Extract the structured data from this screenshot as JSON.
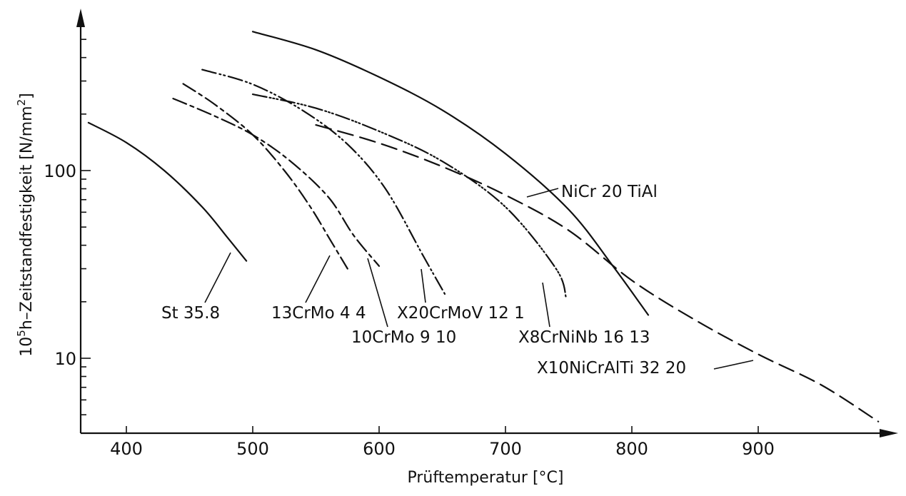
{
  "chart_data": {
    "type": "line",
    "title": "",
    "xlabel": "Prüftemperatur [°C]",
    "ylabel_main": "10",
    "ylabel_sup1": "5",
    "ylabel_mid": "h–Zeitstandfestigkeit [N/mm",
    "ylabel_sup2": "2",
    "ylabel_end": "]",
    "x_scale": "linear",
    "y_scale": "log",
    "xlim": [
      364,
      1000
    ],
    "ylim": [
      4.5,
      600
    ],
    "x_ticks": [
      400,
      500,
      600,
      700,
      800,
      900
    ],
    "x_tick_labels": [
      "400",
      "500",
      "600",
      "700",
      "800",
      "900"
    ],
    "y_major_ticks": [
      10,
      100
    ],
    "y_major_tick_labels": [
      "10",
      "100"
    ],
    "y_minor_ticks": [
      5,
      6,
      7,
      8,
      9,
      20,
      30,
      40,
      50,
      60,
      70,
      80,
      90,
      200,
      300,
      400,
      500
    ],
    "grid": false,
    "legend": "none (curves labelled directly)",
    "series": [
      {
        "name": "St 35.8",
        "style": "solid",
        "points": [
          [
            370,
            180
          ],
          [
            400,
            141
          ],
          [
            430,
            100
          ],
          [
            460,
            64
          ],
          [
            480,
            44
          ],
          [
            495,
            33
          ]
        ]
      },
      {
        "name": "13CrMo 4 4",
        "style": "long-dash-short-dash",
        "points": [
          [
            445,
            290
          ],
          [
            470,
            225
          ],
          [
            500,
            155
          ],
          [
            525,
            100
          ],
          [
            545,
            65
          ],
          [
            562,
            42
          ],
          [
            575,
            30
          ]
        ]
      },
      {
        "name": "10CrMo 9 10",
        "style": "long-dash-short-dash",
        "points": [
          [
            437,
            242
          ],
          [
            470,
            195
          ],
          [
            500,
            155
          ],
          [
            530,
            112
          ],
          [
            560,
            72
          ],
          [
            580,
            45
          ],
          [
            600,
            31
          ]
        ]
      },
      {
        "name": "X20CrMoV 12 1",
        "style": "long-dash-double-dot",
        "points": [
          [
            460,
            345
          ],
          [
            500,
            288
          ],
          [
            540,
            208
          ],
          [
            575,
            138
          ],
          [
            605,
            80
          ],
          [
            635,
            35
          ],
          [
            652,
            22
          ]
        ]
      },
      {
        "name": "X8CrNiNb 16 13",
        "style": "long-dash-triple-dot",
        "points": [
          [
            500,
            255
          ],
          [
            550,
            215
          ],
          [
            600,
            162
          ],
          [
            650,
            112
          ],
          [
            700,
            64
          ],
          [
            740,
            30
          ],
          [
            748,
            21
          ]
        ]
      },
      {
        "name": "NiCr 20 TiAl",
        "style": "solid",
        "points": [
          [
            500,
            550
          ],
          [
            550,
            440
          ],
          [
            600,
            315
          ],
          [
            650,
            210
          ],
          [
            700,
            123
          ],
          [
            750,
            62
          ],
          [
            785,
            31
          ],
          [
            813,
            17
          ]
        ]
      },
      {
        "name": "X10NiCrAlTi 32 20",
        "style": "dashed",
        "points": [
          [
            550,
            175
          ],
          [
            600,
            140
          ],
          [
            650,
            105
          ],
          [
            700,
            74
          ],
          [
            750,
            48
          ],
          [
            800,
            26
          ],
          [
            850,
            16
          ],
          [
            900,
            10.5
          ],
          [
            950,
            7.2
          ],
          [
            995,
            4.6
          ]
        ]
      }
    ],
    "annotations": [
      {
        "text": "St 35.8",
        "series": "St 35.8"
      },
      {
        "text": "13CrMo 4 4",
        "series": "13CrMo 4 4"
      },
      {
        "text": "10CrMo 9 10",
        "series": "10CrMo 9 10"
      },
      {
        "text": "X20CrMoV 12 1",
        "series": "X20CrMoV 12 1"
      },
      {
        "text": "X8CrNiNb 16 13",
        "series": "X8CrNiNb 16 13"
      },
      {
        "text": "NiCr 20 TiAl",
        "series": "NiCr 20 TiAl"
      },
      {
        "text": "X10NiCrAlTi 32 20",
        "series": "X10NiCrAlTi 32 20"
      }
    ]
  }
}
